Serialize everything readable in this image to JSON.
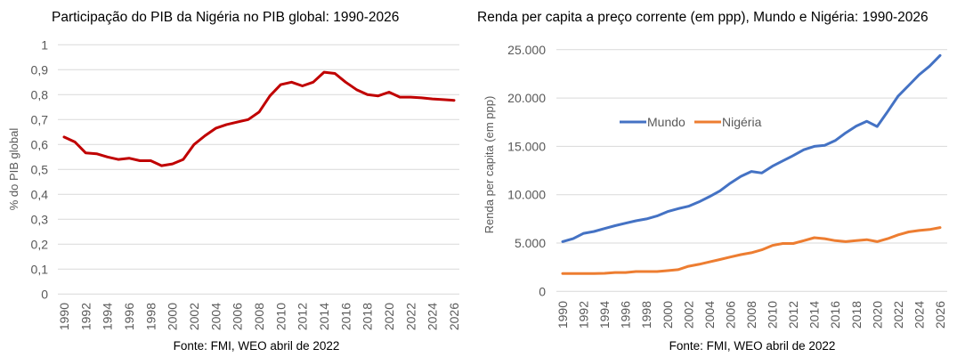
{
  "chart_data": [
    {
      "type": "line",
      "title": "Participação do PIB da Nigéria no PIB global: 1990-2026",
      "xlabel": "",
      "ylabel": "% do PIB global",
      "source": "Fonte: FMI, WEO abril de 2022",
      "ylim": [
        0,
        1
      ],
      "yticks": [
        0,
        0.1,
        0.2,
        0.3,
        0.4,
        0.5,
        0.6,
        0.7,
        0.8,
        0.9,
        1
      ],
      "ytick_labels": [
        "0",
        "0,1",
        "0,2",
        "0,3",
        "0,4",
        "0,5",
        "0,6",
        "0,7",
        "0,8",
        "0,9",
        "1"
      ],
      "xtick_labels": [
        "1990",
        "1992",
        "1994",
        "1996",
        "1998",
        "2000",
        "2002",
        "2004",
        "2006",
        "2008",
        "2010",
        "2012",
        "2014",
        "2016",
        "2018",
        "2020",
        "2022",
        "2024",
        "2026"
      ],
      "grid": true,
      "legend": "none",
      "x": [
        1990,
        1991,
        1992,
        1993,
        1994,
        1995,
        1996,
        1997,
        1998,
        1999,
        2000,
        2001,
        2002,
        2003,
        2004,
        2005,
        2006,
        2007,
        2008,
        2009,
        2010,
        2011,
        2012,
        2013,
        2014,
        2015,
        2016,
        2017,
        2018,
        2019,
        2020,
        2021,
        2022,
        2023,
        2024,
        2025,
        2026
      ],
      "series": [
        {
          "name": "Nigéria",
          "color": "#c00000",
          "values": [
            0.63,
            0.61,
            0.566,
            0.563,
            0.55,
            0.54,
            0.545,
            0.535,
            0.535,
            0.515,
            0.522,
            0.54,
            0.6,
            0.635,
            0.665,
            0.68,
            0.69,
            0.7,
            0.73,
            0.795,
            0.84,
            0.85,
            0.835,
            0.85,
            0.89,
            0.885,
            0.85,
            0.82,
            0.8,
            0.795,
            0.81,
            0.79,
            0.79,
            0.787,
            0.783,
            0.78,
            0.777
          ]
        }
      ]
    },
    {
      "type": "line",
      "title": "Renda per capita a preço corrente (em ppp),  Mundo e Nigéria: 1990-2026",
      "xlabel": "",
      "ylabel": "Renda per capita (em ppp)",
      "source": "Fonte: FMI, WEO abril de 2022",
      "ylim": [
        0,
        25000
      ],
      "yticks": [
        0,
        5000,
        10000,
        15000,
        20000,
        25000
      ],
      "ytick_labels": [
        "0",
        "5.000",
        "10.000",
        "15.000",
        "20.000",
        "25.000"
      ],
      "xtick_labels": [
        "1990",
        "1992",
        "1994",
        "1996",
        "1998",
        "2000",
        "2002",
        "2004",
        "2006",
        "2008",
        "2010",
        "2012",
        "2014",
        "2016",
        "2018",
        "2020",
        "2022",
        "2024",
        "2026"
      ],
      "grid": true,
      "legend": "upper-left inside plot",
      "x": [
        1990,
        1991,
        1992,
        1993,
        1994,
        1995,
        1996,
        1997,
        1998,
        1999,
        2000,
        2001,
        2002,
        2003,
        2004,
        2005,
        2006,
        2007,
        2008,
        2009,
        2010,
        2011,
        2012,
        2013,
        2014,
        2015,
        2016,
        2017,
        2018,
        2019,
        2020,
        2021,
        2022,
        2023,
        2024,
        2025,
        2026
      ],
      "series": [
        {
          "name": "Mundo",
          "color": "#4472c4",
          "values": [
            5150,
            5450,
            6000,
            6200,
            6500,
            6800,
            7050,
            7300,
            7500,
            7800,
            8250,
            8550,
            8800,
            9250,
            9800,
            10400,
            11200,
            11900,
            12400,
            12250,
            12950,
            13500,
            14050,
            14650,
            15000,
            15100,
            15600,
            16400,
            17100,
            17600,
            17050,
            18600,
            20200,
            21300,
            22400,
            23300,
            24400
          ]
        },
        {
          "name": "Nigéria",
          "color": "#ed7d31",
          "values": [
            1850,
            1850,
            1850,
            1850,
            1870,
            1950,
            1950,
            2050,
            2050,
            2050,
            2150,
            2250,
            2600,
            2800,
            3050,
            3300,
            3550,
            3800,
            4000,
            4300,
            4750,
            4950,
            4950,
            5250,
            5550,
            5450,
            5250,
            5150,
            5250,
            5350,
            5150,
            5450,
            5850,
            6150,
            6300,
            6400,
            6600
          ]
        }
      ]
    }
  ]
}
